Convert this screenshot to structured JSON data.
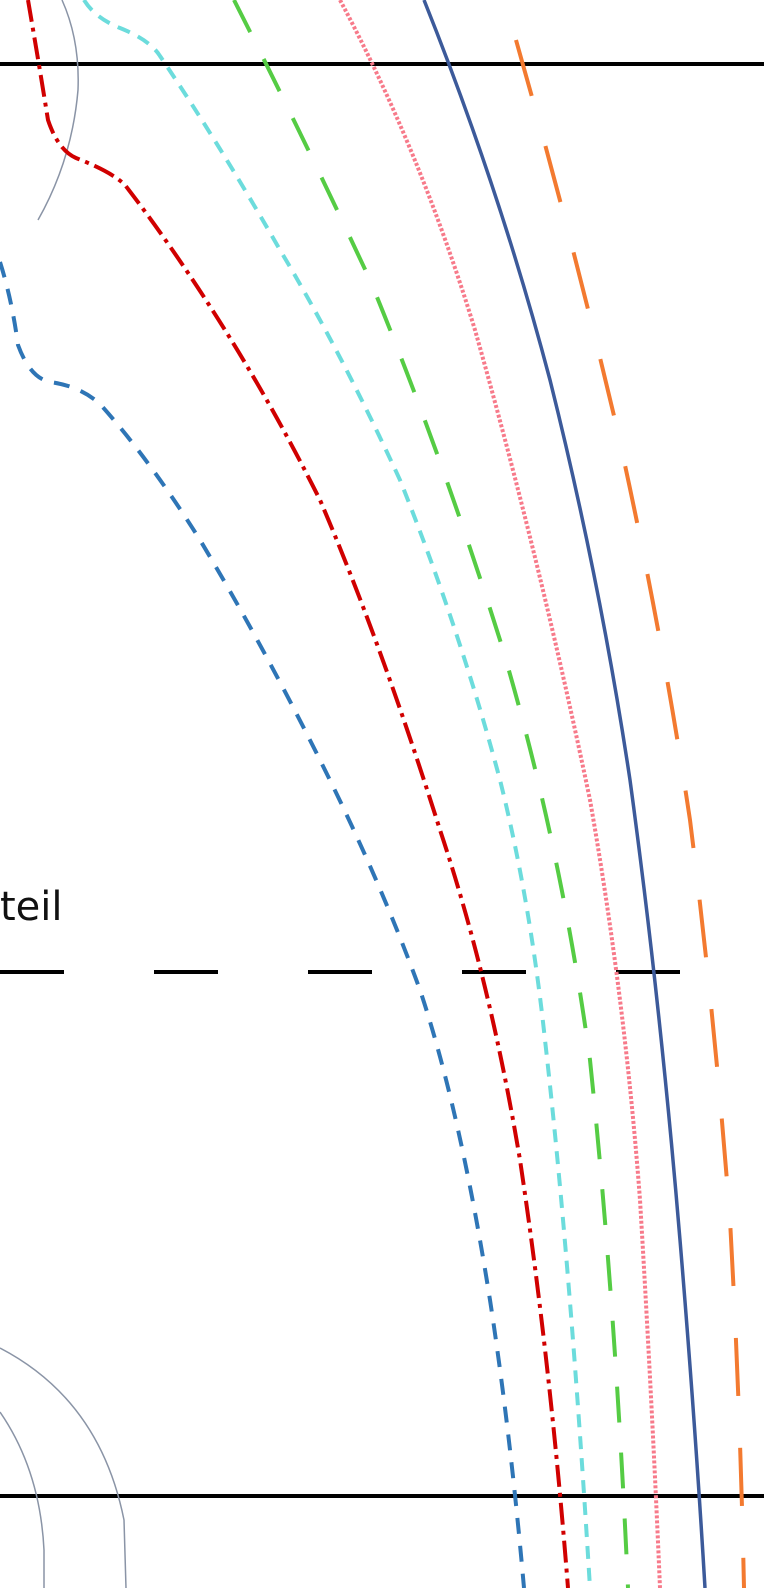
{
  "diagram": {
    "label": "teil",
    "colors": {
      "frame": "#000000",
      "guide_arc": "#8a94a6",
      "blue_dashed": "#2e75b6",
      "red_dashdot": "#d00000",
      "cyan_dashed": "#6cdcdc",
      "green_dashed": "#55cc44",
      "pink_dotted": "#f77a8a",
      "navy_solid": "#3c5a9a",
      "orange_dashed": "#f37a30"
    }
  }
}
